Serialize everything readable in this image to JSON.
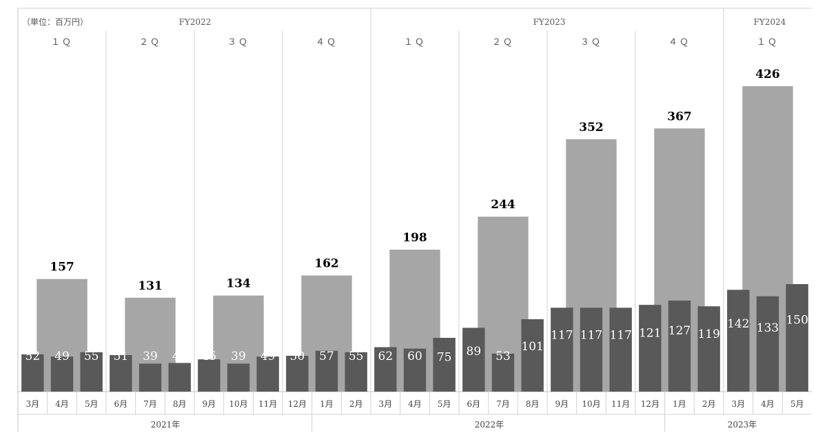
{
  "unit_label": "（単位：百万円）",
  "fiscal_years": [
    {
      "label": "FY2022"
    },
    {
      "label": "FY2023"
    },
    {
      "label": "FY2024"
    }
  ],
  "years": [
    {
      "label": "2021年"
    },
    {
      "label": "2022年"
    },
    {
      "label": "2023年"
    }
  ],
  "colors": {
    "monthly_bar": "#595959",
    "quarterly_bar": "#a6a6a6",
    "divider": "#d0d0d0",
    "axis": "#bfbfbf"
  },
  "chart_data": {
    "type": "bar",
    "ylim": [
      0,
      480
    ],
    "months": [
      "3月",
      "4月",
      "5月",
      "6月",
      "7月",
      "8月",
      "9月",
      "10月",
      "11月",
      "12月",
      "1月",
      "2月",
      "3月",
      "4月",
      "5月",
      "6月",
      "7月",
      "8月",
      "9月",
      "10月",
      "11月",
      "12月",
      "1月",
      "2月",
      "3月",
      "4月",
      "5月"
    ],
    "monthly_values": [
      52,
      49,
      55,
      51,
      39,
      40,
      45,
      39,
      49,
      50,
      57,
      55,
      62,
      60,
      75,
      89,
      53,
      101,
      117,
      117,
      117,
      121,
      127,
      119,
      142,
      133,
      150
    ],
    "quarters": [
      {
        "fy": "FY2022",
        "label": "１Ｑ",
        "total": 157
      },
      {
        "fy": "FY2022",
        "label": "２Ｑ",
        "total": 131
      },
      {
        "fy": "FY2022",
        "label": "３Ｑ",
        "total": 134
      },
      {
        "fy": "FY2022",
        "label": "４Ｑ",
        "total": 162
      },
      {
        "fy": "FY2023",
        "label": "１Ｑ",
        "total": 198
      },
      {
        "fy": "FY2023",
        "label": "２Ｑ",
        "total": 244
      },
      {
        "fy": "FY2023",
        "label": "３Ｑ",
        "total": 352
      },
      {
        "fy": "FY2023",
        "label": "４Ｑ",
        "total": 367
      },
      {
        "fy": "FY2024",
        "label": "１Ｑ",
        "total": 426
      }
    ],
    "title": "",
    "xlabel": "",
    "ylabel": ""
  }
}
